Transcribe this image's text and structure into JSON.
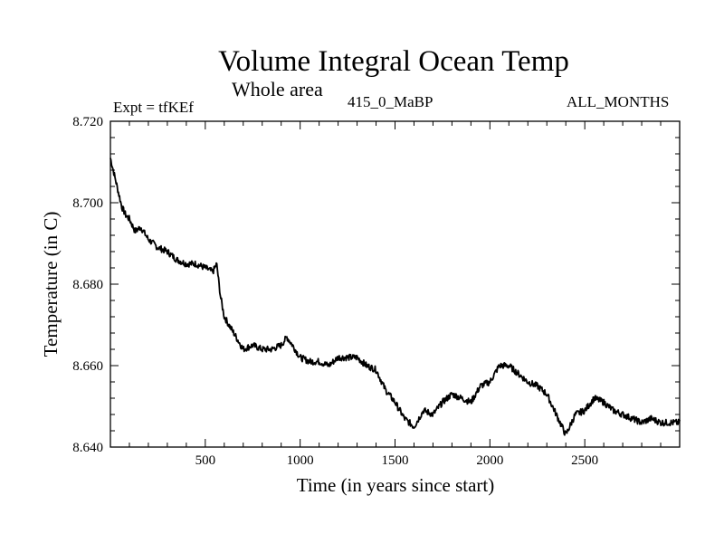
{
  "header": {
    "title": "Volume Integral Ocean Temp",
    "subtitle": "Whole area",
    "expt": "Expt = tfKEf",
    "run_id": "415_0_MaBP",
    "months": "ALL_MONTHS"
  },
  "chart_data": {
    "type": "line",
    "title": "Volume Integral Ocean Temp",
    "subtitle": "Whole area",
    "xlabel": "Time (in years since start)",
    "ylabel": "Temperature (in C)",
    "xlim": [
      0,
      3000
    ],
    "ylim": [
      8.64,
      8.72
    ],
    "xticks": [
      500,
      1000,
      1500,
      2000,
      2500
    ],
    "yticks": [
      8.64,
      8.66,
      8.68,
      8.7,
      8.72
    ],
    "ytick_labels": [
      "8.640",
      "8.660",
      "8.680",
      "8.700",
      "8.720"
    ],
    "grid": false,
    "line_color": "#000000",
    "series": [
      {
        "x": [
          0,
          20,
          40,
          60,
          80,
          100,
          130,
          160,
          200,
          250,
          300,
          350,
          400,
          450,
          500,
          540,
          560,
          580,
          600,
          650,
          700,
          750,
          800,
          850,
          900,
          930,
          960,
          1000,
          1050,
          1100,
          1150,
          1200,
          1250,
          1300,
          1350,
          1400,
          1450,
          1500,
          1550,
          1600,
          1650,
          1700,
          1750,
          1800,
          1850,
          1900,
          1950,
          2000,
          2050,
          2100,
          2150,
          2200,
          2250,
          2300,
          2350,
          2400,
          2450,
          2500,
          2550,
          2600,
          2650,
          2700,
          2750,
          2800,
          2850,
          2900,
          2950,
          3000
        ],
        "y": [
          8.711,
          8.707,
          8.703,
          8.699,
          8.697,
          8.696,
          8.693,
          8.694,
          8.691,
          8.689,
          8.688,
          8.686,
          8.685,
          8.685,
          8.684,
          8.683,
          8.685,
          8.677,
          8.672,
          8.668,
          8.664,
          8.665,
          8.664,
          8.664,
          8.665,
          8.667,
          8.665,
          8.662,
          8.661,
          8.661,
          8.66,
          8.662,
          8.662,
          8.662,
          8.66,
          8.659,
          8.654,
          8.651,
          8.647,
          8.645,
          8.649,
          8.648,
          8.651,
          8.653,
          8.652,
          8.651,
          8.655,
          8.656,
          8.66,
          8.66,
          8.658,
          8.656,
          8.655,
          8.653,
          8.648,
          8.643,
          8.648,
          8.649,
          8.652,
          8.651,
          8.649,
          8.648,
          8.647,
          8.646,
          8.647,
          8.646,
          8.646,
          8.646
        ]
      }
    ]
  }
}
